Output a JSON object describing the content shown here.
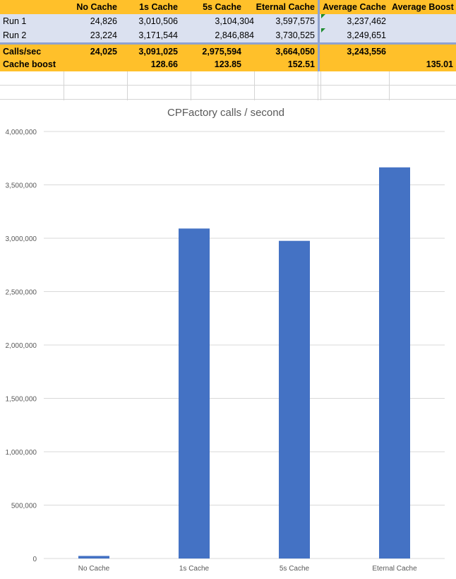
{
  "sheet": {
    "headers": [
      "",
      "No Cache",
      "1s Cache",
      "5s Cache",
      "Eternal Cache",
      "Average Cache",
      "Average Boost"
    ],
    "rows": [
      [
        "Run 1",
        "24,826",
        "3,010,506",
        "3,104,304",
        "3,597,575",
        "3,237,462",
        ""
      ],
      [
        "Run 2",
        "23,224",
        "3,171,544",
        "2,846,884",
        "3,730,525",
        "3,249,651",
        ""
      ],
      [
        "Calls/sec",
        "24,025",
        "3,091,025",
        "2,975,594",
        "3,664,050",
        "3,243,556",
        ""
      ],
      [
        "Cache boost",
        "",
        "128.66",
        "123.85",
        "152.51",
        "",
        "135.01"
      ]
    ]
  },
  "colors": {
    "header_bg": "#ffc02a",
    "row_bg": "#dbe1f0",
    "bar": "#4472c4",
    "marker": "#1e8c2e"
  },
  "chart_data": {
    "type": "bar",
    "title": "CPFactory calls / second",
    "categories": [
      "No Cache",
      "1s Cache",
      "5s Cache",
      "Eternal Cache"
    ],
    "values": [
      24025,
      3091025,
      2975594,
      3664050
    ],
    "xlabel": "",
    "ylabel": "",
    "ylim": [
      0,
      4000000
    ],
    "yticks": [
      0,
      500000,
      1000000,
      1500000,
      2000000,
      2500000,
      3000000,
      3500000,
      4000000
    ],
    "ytick_labels": [
      "0",
      "500,000",
      "1,000,000",
      "1,500,000",
      "2,000,000",
      "2,500,000",
      "3,000,000",
      "3,500,000",
      "4,000,000"
    ],
    "grid": true,
    "legend": "none"
  }
}
